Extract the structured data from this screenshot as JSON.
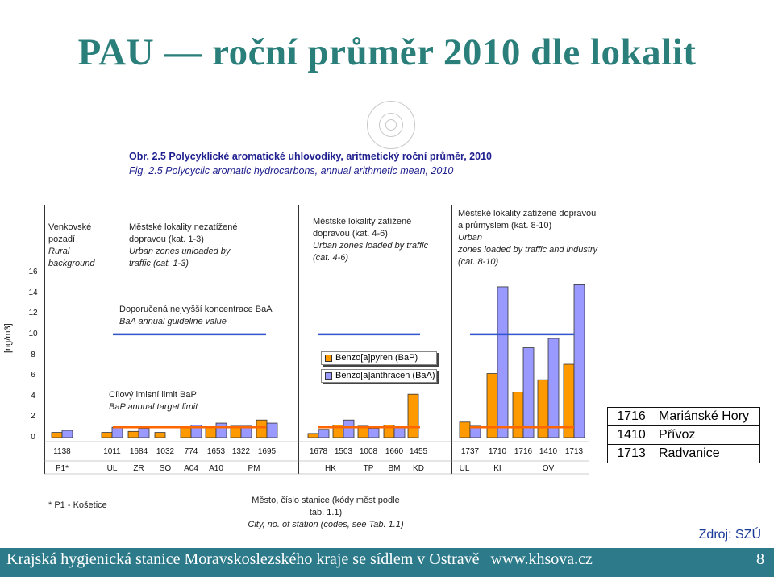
{
  "slide": {
    "title": "PAU — roční průměr 2010 dle lokalit",
    "footer": "Krajská hygienická stanice Moravskoslezského kraje se sídlem v Ostravě | www.khsova.cz",
    "page_number": "8",
    "source": "Zdroj: SZÚ",
    "colors": {
      "title": "#2a7f7a",
      "footer_bg": "#2d7a8a",
      "bap": "#ff9900",
      "baa": "#9999ff",
      "guideline": "#3355cc",
      "target": "#ff6600"
    }
  },
  "chart_data": {
    "type": "bar",
    "caption_cz": "Obr. 2.5  Polycyklické aromatické uhlovodíky, aritmetický roční průměr, 2010",
    "caption_en": "Fig. 2.5  Polycyclic aromatic hydrocarbons, annual arithmetic mean, 2010",
    "ylabel": "[ng/m3]",
    "ylim": [
      0,
      16
    ],
    "yticks": [
      "0",
      "2",
      "4",
      "6",
      "8",
      "10",
      "12",
      "14",
      "16"
    ],
    "grid": false,
    "groups": [
      {
        "cz1": "Venkovské",
        "cz2": "pozadí",
        "en1": "Rural",
        "en2": "background"
      },
      {
        "cz1": "Městské lokality nezatížené",
        "cz2": "dopravou (kat. 1-3)",
        "en1": "Urban zones unloaded by",
        "en2": "traffic (cat. 1-3)"
      },
      {
        "cz1": "Městské lokality zatížené",
        "cz2": "dopravou (kat. 4-6)",
        "en1": "Urban zones loaded by traffic",
        "en2": "(cat. 4-6)"
      },
      {
        "cz1": "Městské lokality zatížené dopravou",
        "cz2": "a průmyslem  (kat. 8-10)",
        "en1": "Urban",
        "en2": "zones loaded by traffic and industry",
        "en3": "(cat. 8-10)"
      }
    ],
    "stations": [
      "1138",
      "1011",
      "1684",
      "1032",
      "774",
      "1653",
      "1322",
      "1695",
      "1678",
      "1503",
      "1008",
      "1660",
      "1455",
      "1737",
      "1710",
      "1716",
      "1410",
      "1713"
    ],
    "city_labels": [
      "P1*",
      "UL",
      "ZR",
      "SO",
      "A04",
      "A10",
      "PM",
      "HK",
      "TP",
      "BM",
      "KD",
      "UL",
      "KI",
      "OV"
    ],
    "series": [
      {
        "name": "Benzo[a]pyren (BaP)",
        "values": [
          0.5,
          0.5,
          0.6,
          0.5,
          1.0,
          1.0,
          1.1,
          1.7,
          0.4,
          1.2,
          1.1,
          1.2,
          4.2,
          1.5,
          6.2,
          4.4,
          5.6,
          7.1
        ]
      },
      {
        "name": "Benzo[a]anthracen (BaA)",
        "values": [
          0.7,
          1.0,
          0.9,
          0.0,
          1.2,
          1.4,
          1.1,
          1.4,
          0.8,
          1.7,
          0.9,
          1.0,
          0.0,
          1.1,
          14.6,
          8.7,
          9.6,
          14.8
        ]
      }
    ],
    "annotations": {
      "guideline_cz": "Doporučená nejvyšší koncentrace BaA",
      "guideline_en": "BaA annual guideline value",
      "guideline_value": 10,
      "target_cz": "Cílový imisní limit BaP",
      "target_en": "BaP annual target limit",
      "target_value": 1,
      "footnote": "* P1 - Košetice",
      "xlabel_cz": "Město, číslo stanice (kódy měst podle tab. 1.1)",
      "xlabel_en": "City, no. of station (codes, see Tab. 1.1)"
    }
  },
  "station_table": [
    {
      "code": "1716",
      "name": "Mariánské Hory"
    },
    {
      "code": "1410",
      "name": "Přívoz"
    },
    {
      "code": "1713",
      "name": "Radvanice"
    }
  ]
}
